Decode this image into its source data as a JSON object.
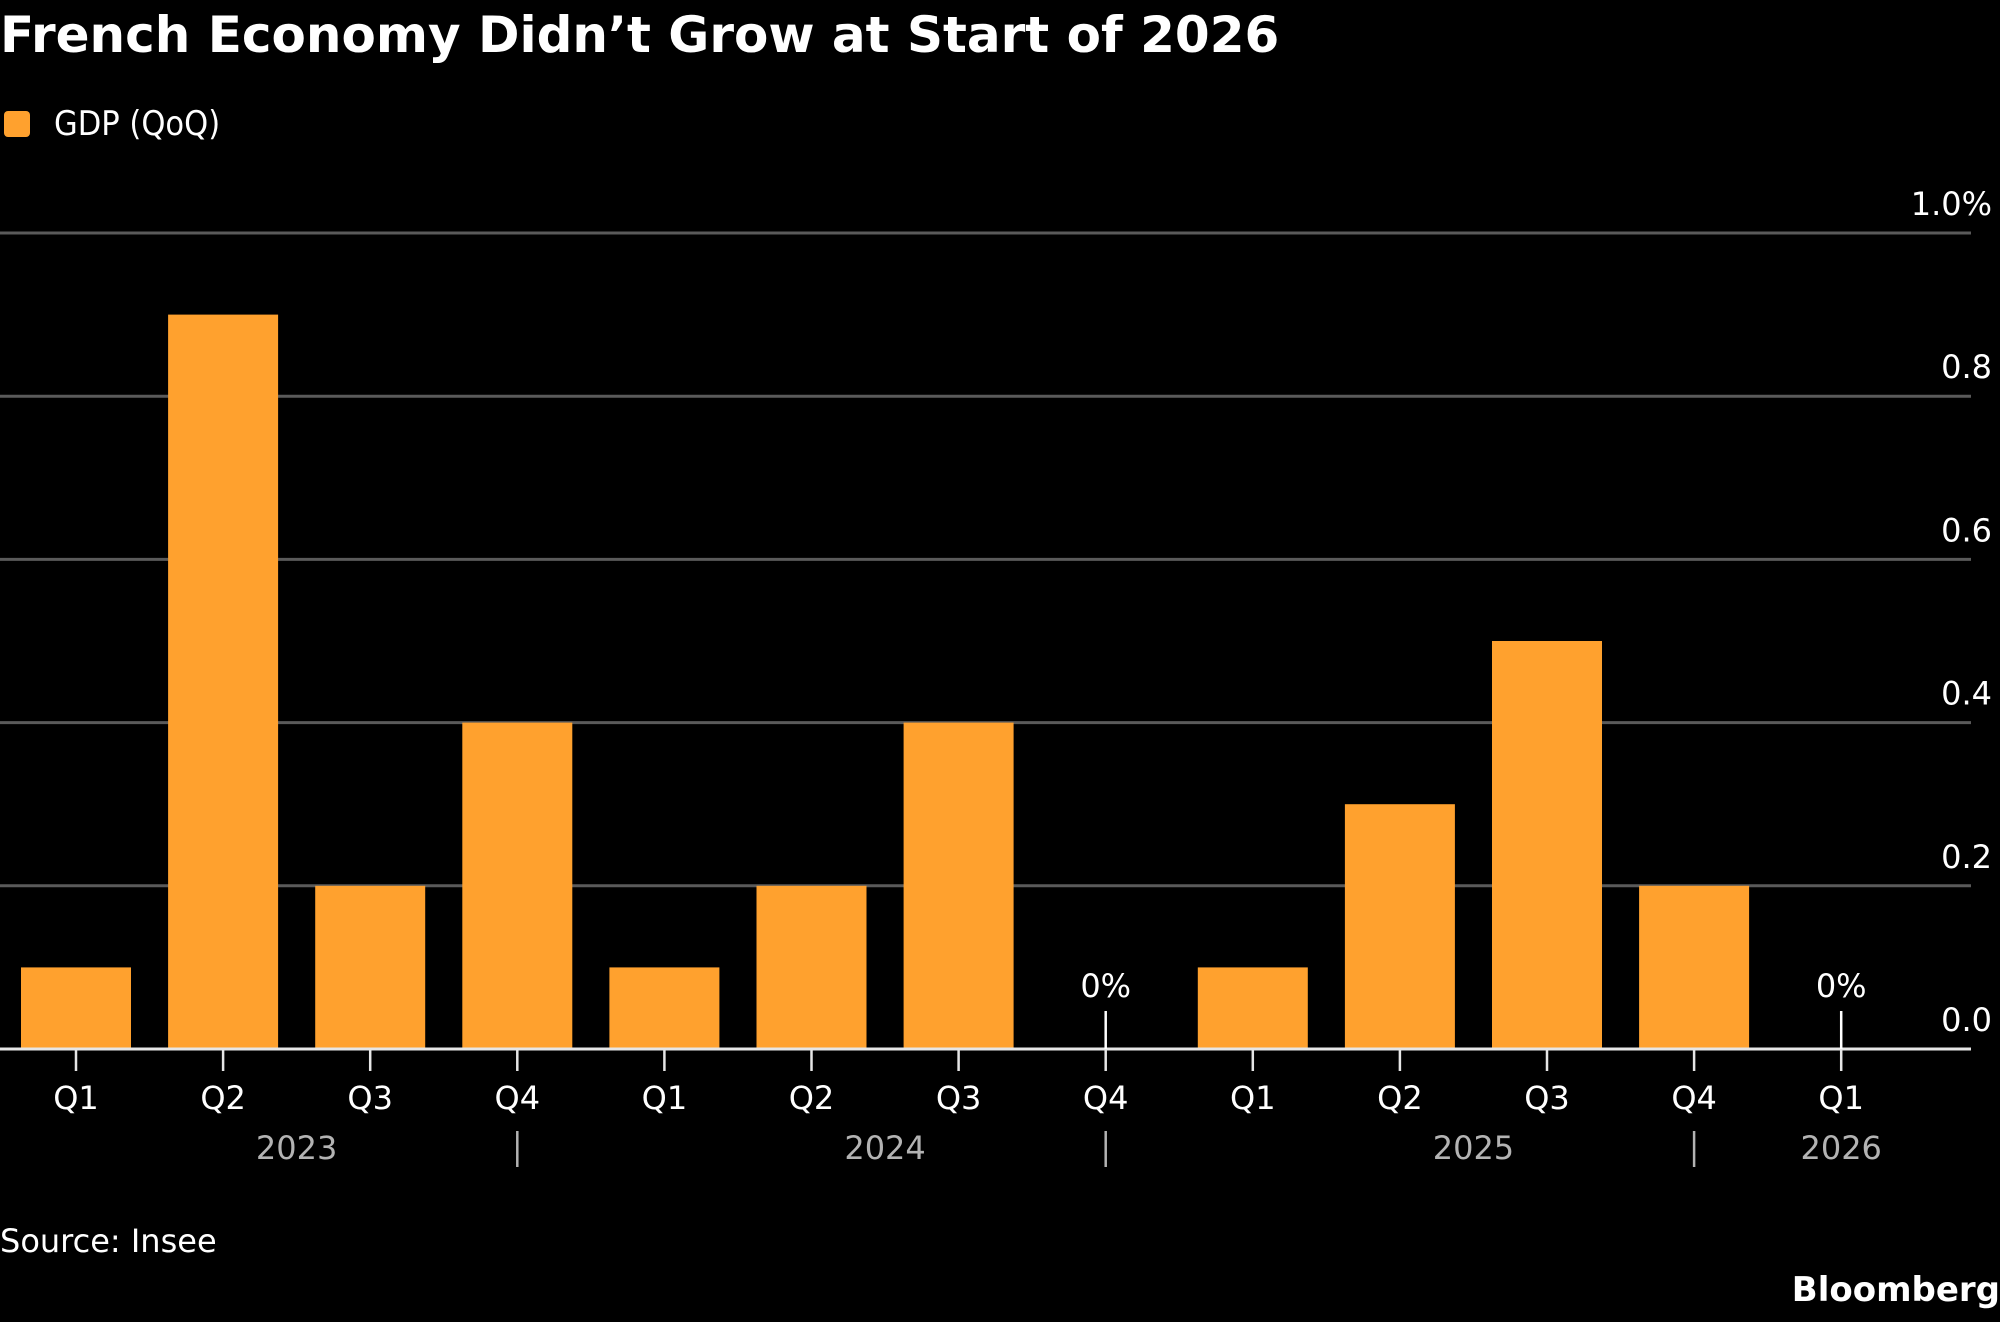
{
  "title": "French Economy Didn’t Grow at Start of 2026",
  "legend": [
    {
      "label": "GDP (QoQ)",
      "color": "#ffa12e"
    }
  ],
  "source": "Source: Insee",
  "brand": "Bloomberg",
  "chart_data": {
    "type": "bar",
    "title": "French Economy Didn’t Grow at Start of 2026",
    "xlabel": "",
    "ylabel": "",
    "ylim": [
      0,
      1.0
    ],
    "y_ticks": [
      0.0,
      0.2,
      0.4,
      0.6,
      0.8,
      1.0
    ],
    "y_tick_labels": [
      "0.0",
      "0.2",
      "0.4",
      "0.6",
      "0.8",
      "1.0%"
    ],
    "grid": true,
    "y_axis_position": "right",
    "legend_position": "top-left",
    "categories": [
      "Q1",
      "Q2",
      "Q3",
      "Q4",
      "Q1",
      "Q2",
      "Q3",
      "Q4",
      "Q1",
      "Q2",
      "Q3",
      "Q4",
      "Q1"
    ],
    "years": [
      {
        "label": "2023",
        "start": 0,
        "end": 3
      },
      {
        "label": "2024",
        "start": 4,
        "end": 7
      },
      {
        "label": "2025",
        "start": 8,
        "end": 11
      },
      {
        "label": "2026",
        "start": 12,
        "end": 12
      }
    ],
    "series": [
      {
        "name": "GDP (QoQ)",
        "color": "#ffa12e",
        "values": [
          0.1,
          0.9,
          0.2,
          0.4,
          0.1,
          0.2,
          0.4,
          0.0,
          0.1,
          0.3,
          0.5,
          0.2,
          0.0
        ]
      }
    ],
    "annotations": [
      {
        "index": 7,
        "text": "0%"
      },
      {
        "index": 12,
        "text": "0%"
      }
    ]
  }
}
